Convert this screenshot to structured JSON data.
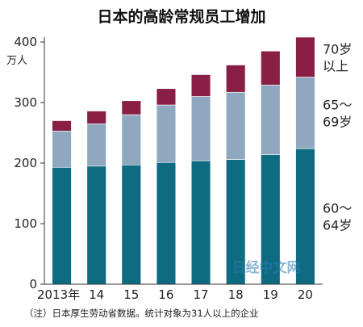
{
  "chart_data": {
    "type": "bar",
    "stacked": true,
    "title": "日本的高龄常规员工增加",
    "unit_label": [
      "万人"
    ],
    "categories": [
      "2013年",
      "14",
      "15",
      "16",
      "17",
      "18",
      "19",
      "20"
    ],
    "ylim": [
      0,
      400
    ],
    "yticks": [
      0,
      100,
      200,
      300,
      400
    ],
    "grid": false,
    "series": [
      {
        "name": "60～64岁",
        "label_lines": [
          "60～",
          "64岁"
        ],
        "color": "#0e6b82",
        "values": [
          193,
          195,
          197,
          201,
          204,
          206,
          214,
          224
        ]
      },
      {
        "name": "65～69岁",
        "label_lines": [
          "65～",
          "69岁"
        ],
        "color": "#8fa8bf",
        "values": [
          60,
          70,
          83,
          95,
          106,
          111,
          115,
          118
        ]
      },
      {
        "name": "70岁以上",
        "label_lines": [
          "70岁",
          "以上"
        ],
        "color": "#8a1f45",
        "values": [
          17,
          21,
          23,
          27,
          36,
          45,
          56,
          66
        ]
      }
    ],
    "note": "（注）日本厚生劳动省数据。统计对象为31人以上的企业"
  },
  "watermark": "日经中文网"
}
